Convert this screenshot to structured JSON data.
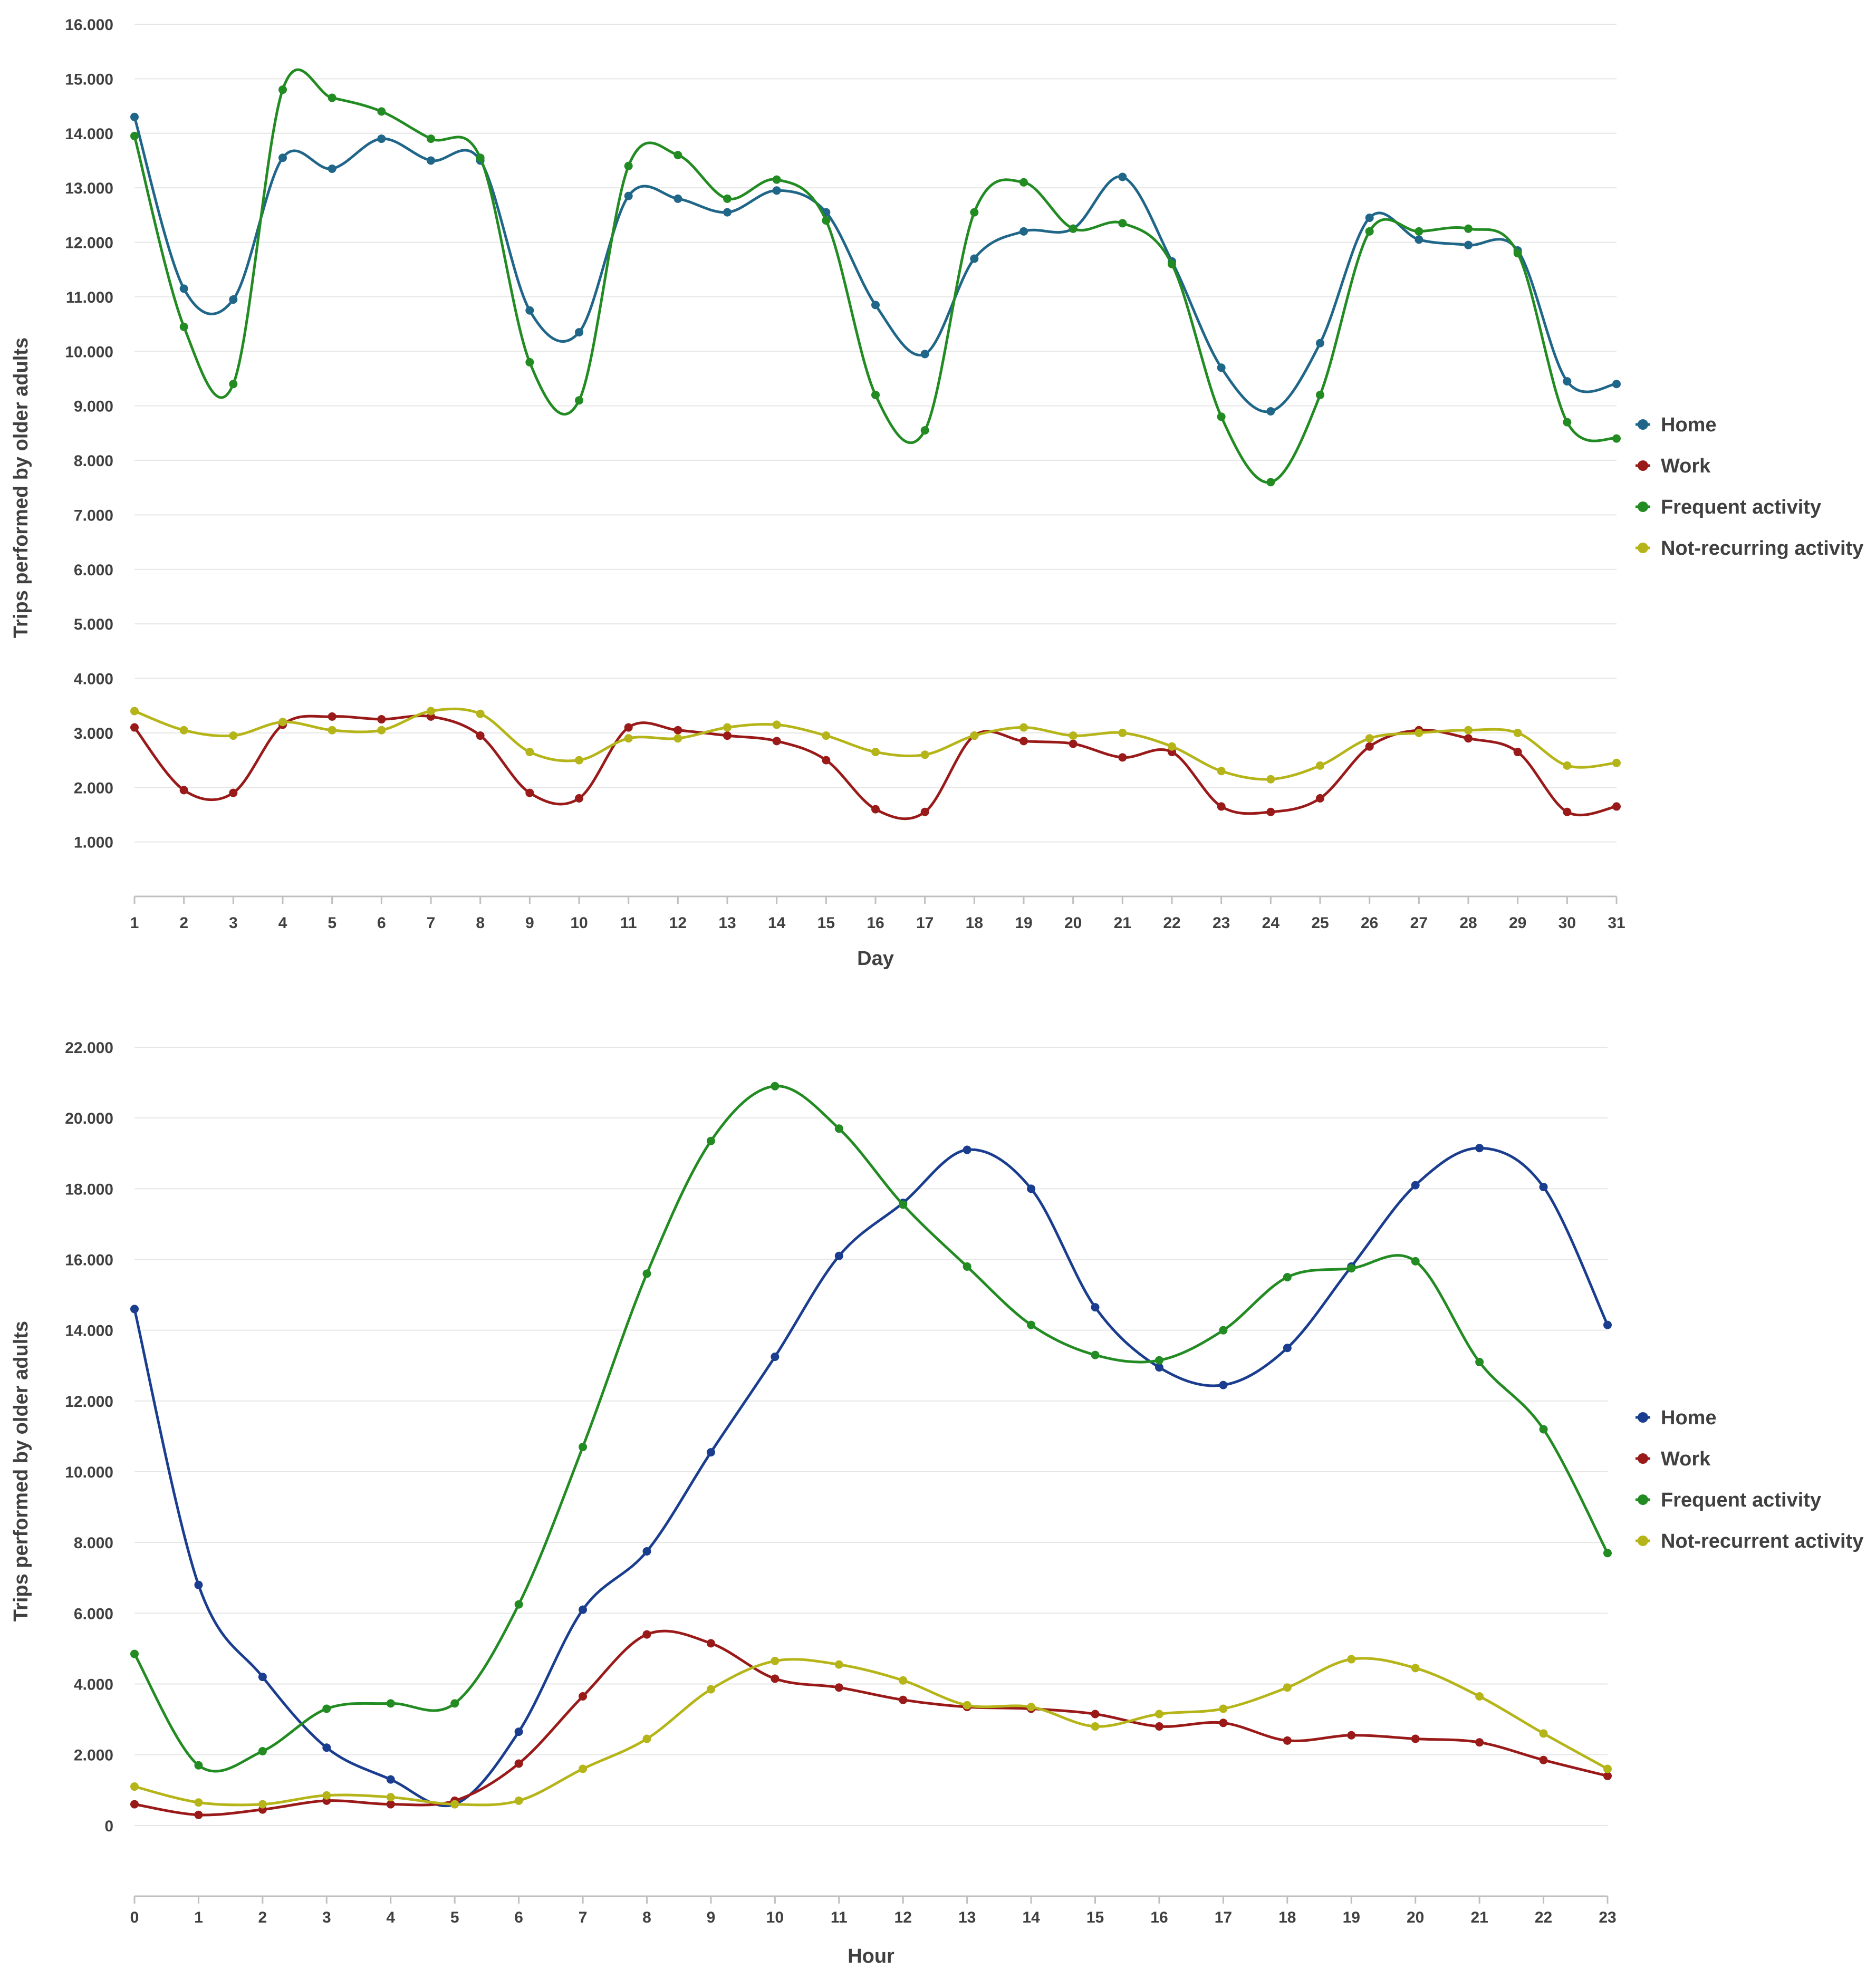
{
  "chart_data": [
    {
      "type": "line",
      "xlabel": "Day",
      "ylabel": "Trips performed by older adults",
      "x": [
        1,
        2,
        3,
        4,
        5,
        6,
        7,
        8,
        9,
        10,
        11,
        12,
        13,
        14,
        15,
        16,
        17,
        18,
        19,
        20,
        21,
        22,
        23,
        24,
        25,
        26,
        27,
        28,
        29,
        30,
        31
      ],
      "ylim": [
        0,
        16000
      ],
      "yticks": [
        1000,
        2000,
        3000,
        4000,
        5000,
        6000,
        7000,
        8000,
        9000,
        10000,
        11000,
        12000,
        13000,
        14000,
        15000,
        16000
      ],
      "ytick_labels": [
        "1.000",
        "2.000",
        "3.000",
        "4.000",
        "5.000",
        "6.000",
        "7.000",
        "8.000",
        "9.000",
        "10.000",
        "11.000",
        "12.000",
        "13.000",
        "14.000",
        "15.000",
        "16.000"
      ],
      "legend_position": "right",
      "series": [
        {
          "name": "Home",
          "color": "#1f6688",
          "values": [
            14300,
            11150,
            10950,
            13550,
            13350,
            13900,
            13500,
            13500,
            10750,
            10350,
            12850,
            12800,
            12550,
            12950,
            12550,
            10850,
            9950,
            11700,
            12200,
            12250,
            13200,
            11650,
            9700,
            8900,
            10150,
            12450,
            12050,
            11950,
            11850,
            9450,
            9400
          ]
        },
        {
          "name": "Work",
          "color": "#9a1a1a",
          "values": [
            3100,
            1950,
            1900,
            3150,
            3300,
            3250,
            3300,
            2950,
            1900,
            1800,
            3100,
            3050,
            2950,
            2850,
            2500,
            1600,
            1550,
            2950,
            2850,
            2800,
            2550,
            2650,
            1650,
            1550,
            1800,
            2750,
            3050,
            2900,
            2650,
            1550,
            1650
          ]
        },
        {
          "name": "Frequent activity",
          "color": "#228b22",
          "values": [
            13950,
            10450,
            9400,
            14800,
            14650,
            14400,
            13900,
            13550,
            9800,
            9100,
            13400,
            13600,
            12800,
            13150,
            12400,
            9200,
            8550,
            12550,
            13100,
            12250,
            12350,
            11600,
            8800,
            7600,
            9200,
            12200,
            12200,
            12250,
            11800,
            8700,
            8400
          ]
        },
        {
          "name": "Not-recurring activity",
          "color": "#b5b51a",
          "values": [
            3400,
            3050,
            2950,
            3200,
            3050,
            3050,
            3400,
            3350,
            2650,
            2500,
            2900,
            2900,
            3100,
            3150,
            2950,
            2650,
            2600,
            2950,
            3100,
            2950,
            3000,
            2750,
            2300,
            2150,
            2400,
            2900,
            3000,
            3050,
            3000,
            2400,
            2450
          ]
        }
      ]
    },
    {
      "type": "line",
      "xlabel": "Hour",
      "ylabel": "Trips performed by older adults",
      "x": [
        0,
        1,
        2,
        3,
        4,
        5,
        6,
        7,
        8,
        9,
        10,
        11,
        12,
        13,
        14,
        15,
        16,
        17,
        18,
        19,
        20,
        21,
        22,
        23
      ],
      "ylim": [
        -2000,
        22000
      ],
      "yticks": [
        0,
        2000,
        4000,
        6000,
        8000,
        10000,
        12000,
        14000,
        16000,
        18000,
        20000,
        22000
      ],
      "ytick_labels": [
        "0",
        "2.000",
        "4.000",
        "6.000",
        "8.000",
        "10.000",
        "12.000",
        "14.000",
        "16.000",
        "18.000",
        "20.000",
        "22.000"
      ],
      "legend_position": "right",
      "series": [
        {
          "name": "Home",
          "color": "#1a3d8f",
          "values": [
            14600,
            6800,
            4200,
            2200,
            1300,
            600,
            2650,
            6100,
            7750,
            10550,
            13250,
            16100,
            17600,
            19100,
            18000,
            14650,
            12950,
            12450,
            13500,
            15800,
            18100,
            19150,
            18050,
            14150
          ]
        },
        {
          "name": "Work",
          "color": "#9a1a1a",
          "values": [
            600,
            300,
            450,
            700,
            600,
            700,
            1750,
            3650,
            5400,
            5150,
            4150,
            3900,
            3550,
            3350,
            3300,
            3150,
            2800,
            2900,
            2400,
            2550,
            2450,
            2350,
            1850,
            1400
          ]
        },
        {
          "name": "Frequent activity",
          "color": "#228b22",
          "values": [
            4850,
            1700,
            2100,
            3300,
            3450,
            3450,
            6250,
            10700,
            15600,
            19350,
            20900,
            19700,
            17550,
            15800,
            14150,
            13300,
            13150,
            14000,
            15500,
            15750,
            15950,
            13100,
            11200,
            7700
          ]
        },
        {
          "name": "Not-recurrent activity",
          "color": "#b5b51a",
          "values": [
            1100,
            650,
            600,
            850,
            800,
            600,
            700,
            1600,
            2450,
            3850,
            4650,
            4550,
            4100,
            3400,
            3350,
            2800,
            3150,
            3300,
            3900,
            4700,
            4450,
            3650,
            2600,
            1600
          ]
        }
      ]
    }
  ]
}
